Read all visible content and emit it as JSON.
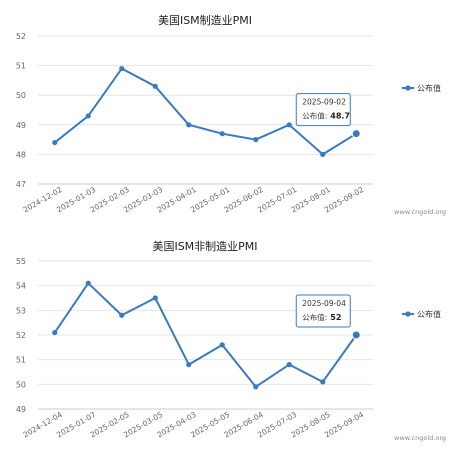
{
  "chart_data": [
    {
      "type": "line",
      "title": "美国ISM制造业PMI",
      "series": [
        {
          "name": "公布值",
          "color": "#3a7bbf",
          "x": [
            "2024-12-02",
            "2025-01-03",
            "2025-02-03",
            "2025-03-03",
            "2025-04-01",
            "2025-05-01",
            "2025-06-02",
            "2025-07-01",
            "2025-08-01",
            "2025-09-02"
          ],
          "values": [
            48.4,
            49.3,
            50.9,
            50.3,
            49.0,
            48.7,
            48.5,
            49.0,
            48.0,
            48.7
          ]
        }
      ],
      "ylim": [
        47,
        52
      ],
      "yticks": [
        "47",
        "48",
        "49",
        "50",
        "51",
        "52"
      ],
      "legend": "right",
      "grid": "horizontal",
      "tooltip": {
        "date": "2025-09-02",
        "label": "公布值:",
        "value": "48.7"
      },
      "watermark": "www.cngold.org"
    },
    {
      "type": "line",
      "title": "美国ISM非制造业PMI",
      "series": [
        {
          "name": "公布值",
          "color": "#3a7bbf",
          "x": [
            "2024-12-04",
            "2025-01-07",
            "2025-02-05",
            "2025-03-05",
            "2025-04-03",
            "2025-05-05",
            "2025-06-04",
            "2025-07-03",
            "2025-08-05",
            "2025-09-04"
          ],
          "values": [
            52.1,
            54.1,
            52.8,
            53.5,
            50.8,
            51.6,
            49.9,
            50.8,
            50.1,
            52.0
          ]
        }
      ],
      "ylim": [
        49,
        55
      ],
      "yticks": [
        "49",
        "50",
        "51",
        "52",
        "53",
        "54",
        "55"
      ],
      "legend": "right",
      "grid": "horizontal",
      "tooltip": {
        "date": "2025-09-04",
        "label": "公布值:",
        "value": "52"
      },
      "watermark": "www.cngold.org"
    }
  ]
}
